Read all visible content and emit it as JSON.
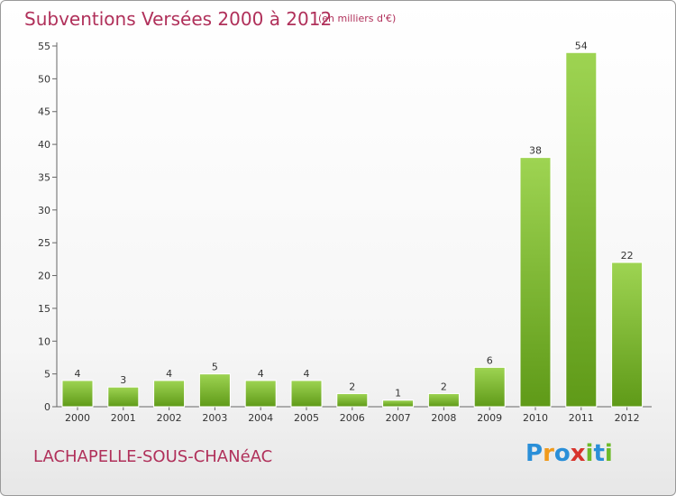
{
  "title": "Subventions Versées 2000 à 2012",
  "subtitle": "(en milliers d'€)",
  "commune": "LACHAPELLE-SOUS-CHANéAC",
  "logo": {
    "letters": [
      "P",
      "r",
      "o",
      "x",
      "i",
      "t",
      "i"
    ],
    "colors": [
      "#2a8fd8",
      "#f09a1c",
      "#2a8fd8",
      "#d8342c",
      "#6dba2a",
      "#2a8fd8",
      "#6dba2a"
    ]
  },
  "colors": {
    "title": "#b0305a",
    "bar_top": "#9ed452",
    "bar_bottom": "#5f9a18",
    "axis": "#666666"
  },
  "chart_data": {
    "type": "bar",
    "title": "Subventions Versées 2000 à 2012",
    "categories": [
      "2000",
      "2001",
      "2002",
      "2003",
      "2004",
      "2005",
      "2006",
      "2007",
      "2008",
      "2009",
      "2010",
      "2011",
      "2012"
    ],
    "values": [
      4,
      3,
      4,
      5,
      4,
      4,
      2,
      1,
      2,
      6,
      38,
      54,
      22
    ],
    "ylim": [
      0,
      55
    ],
    "yticks": [
      0,
      5,
      10,
      15,
      20,
      25,
      30,
      35,
      40,
      45,
      50,
      55
    ],
    "xlabel": "",
    "ylabel": "",
    "grid": false
  }
}
